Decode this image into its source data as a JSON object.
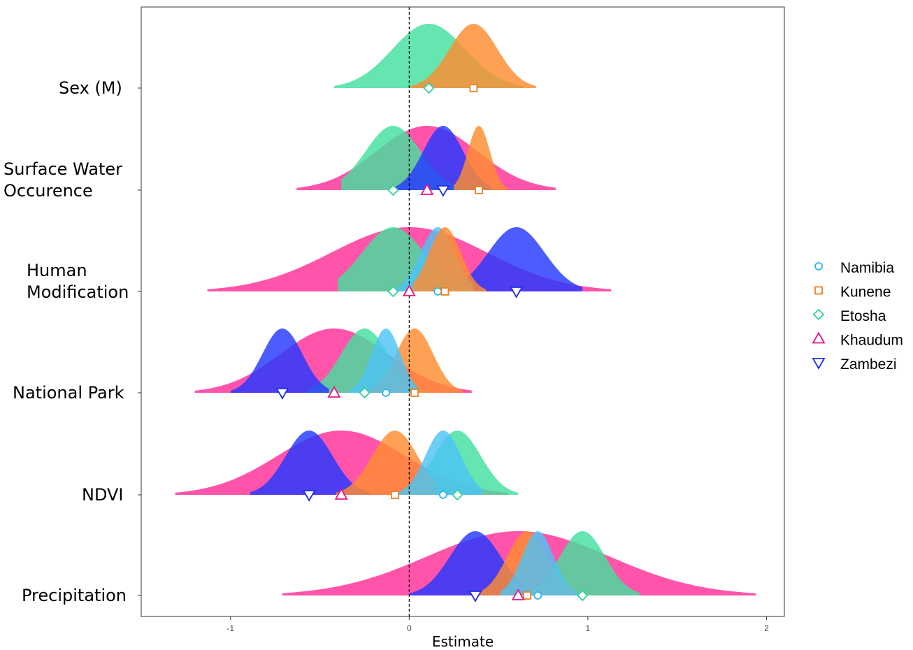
{
  "chart_data": {
    "type": "ridgeline",
    "xlabel": "Estimate",
    "ylabel": "",
    "title": "",
    "xlim": [
      -1.5,
      2.1
    ],
    "x_ticks": [
      {
        "value": -1,
        "label": "-1"
      },
      {
        "value": 0,
        "label": "0"
      },
      {
        "value": 1,
        "label": "1"
      },
      {
        "value": 2,
        "label": "2"
      }
    ],
    "reference_line": 0,
    "grid": false,
    "legend_position": "right",
    "categories": [
      {
        "lines": [
          "Sex (M)"
        ]
      },
      {
        "lines": [
          "Surface Water",
          "Occurence"
        ]
      },
      {
        "lines": [
          "Human",
          "Modification"
        ]
      },
      {
        "lines": [
          "National Park"
        ]
      },
      {
        "lines": [
          "NDVI"
        ]
      },
      {
        "lines": [
          "Precipitation"
        ]
      }
    ],
    "series": [
      {
        "name": "Namibia",
        "marker": "circle",
        "color": "#29b6e8",
        "fill": "#4dc3f5",
        "values": [
          null,
          null,
          0.16,
          -0.13,
          0.19,
          0.72
        ],
        "range_low": [
          null,
          null,
          -0.09,
          -0.34,
          -0.07,
          0.51
        ],
        "range_high": [
          null,
          null,
          0.36,
          0.05,
          0.41,
          0.95
        ]
      },
      {
        "name": "Kunene",
        "marker": "square",
        "color": "#f07f1e",
        "fill": "#ff8c30",
        "values": [
          0.36,
          0.39,
          0.2,
          0.03,
          -0.08,
          0.66
        ],
        "range_low": [
          0.01,
          0.25,
          0.02,
          -0.22,
          -0.41,
          0.37
        ],
        "range_high": [
          0.71,
          0.55,
          0.43,
          0.3,
          0.15,
          0.94
        ]
      },
      {
        "name": "Etosha",
        "marker": "diamond",
        "color": "#2ed49a",
        "fill": "#43df9e",
        "values": [
          0.11,
          -0.09,
          -0.09,
          -0.25,
          0.27,
          0.97
        ],
        "range_low": [
          -0.42,
          -0.38,
          -0.4,
          -0.57,
          -0.05,
          0.64
        ],
        "range_high": [
          0.64,
          0.31,
          0.36,
          0.09,
          0.61,
          1.29
        ]
      },
      {
        "name": "Khaudum",
        "marker": "triangle-up",
        "color": "#e8158a",
        "fill": "#ff2e97",
        "values": [
          null,
          0.1,
          0.0,
          -0.42,
          -0.38,
          0.61
        ],
        "range_low": [
          null,
          -0.63,
          -1.13,
          -1.2,
          -1.31,
          -0.71
        ],
        "range_high": [
          null,
          0.82,
          1.13,
          0.35,
          0.55,
          1.94
        ]
      },
      {
        "name": "Zambezi",
        "marker": "triangle-down",
        "color": "#1f2ee8",
        "fill": "#2638ff",
        "values": [
          null,
          0.19,
          0.6,
          -0.71,
          -0.56,
          0.37
        ],
        "range_low": [
          null,
          -0.1,
          0.19,
          -1.0,
          -0.89,
          0.0
        ],
        "range_high": [
          null,
          0.46,
          0.97,
          -0.45,
          -0.22,
          0.74
        ]
      }
    ]
  }
}
